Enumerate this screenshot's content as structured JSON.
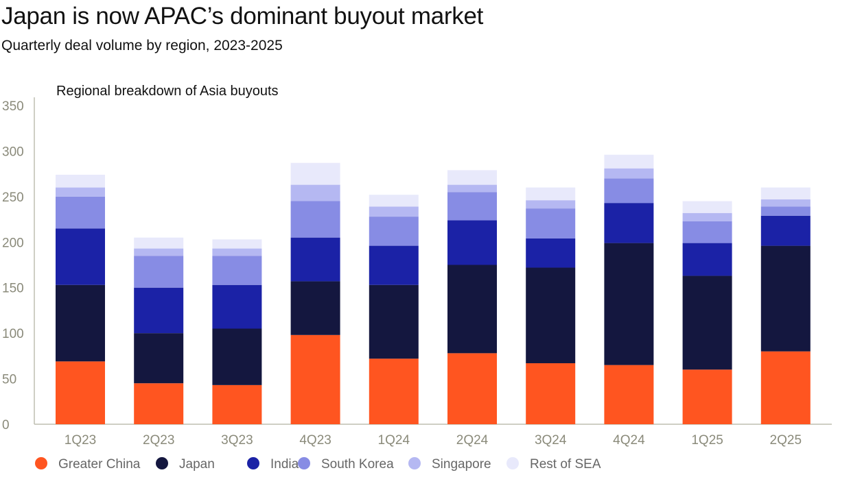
{
  "chart_data": {
    "type": "bar",
    "stacked": true,
    "title": "Japan is now APAC’s dominant buyout market",
    "subtitle": "Quarterly deal volume by region, 2023-2025",
    "inner_title": "Regional breakdown of Asia buyouts",
    "xlabel": "",
    "ylabel": "",
    "ylim": [
      0,
      350
    ],
    "yticks": [
      0,
      50,
      100,
      150,
      200,
      250,
      300,
      350
    ],
    "grid": false,
    "legend_position": "bottom",
    "categories": [
      "1Q23",
      "2Q23",
      "3Q23",
      "4Q23",
      "1Q24",
      "2Q24",
      "3Q24",
      "4Q24",
      "1Q25",
      "2Q25"
    ],
    "series": [
      {
        "name": "Greater China",
        "color": "#FF5520",
        "values": [
          69,
          45,
          43,
          98,
          72,
          78,
          67,
          65,
          60,
          80
        ]
      },
      {
        "name": "Japan",
        "color": "#14173F",
        "values": [
          84,
          55,
          62,
          59,
          81,
          97,
          105,
          134,
          103,
          116
        ]
      },
      {
        "name": "India",
        "color": "#1B22A6",
        "values": [
          62,
          50,
          48,
          48,
          43,
          49,
          32,
          44,
          36,
          33
        ]
      },
      {
        "name": "South Korea",
        "color": "#878CE4",
        "values": [
          35,
          35,
          32,
          40,
          32,
          31,
          33,
          27,
          24,
          10
        ]
      },
      {
        "name": "Singapore",
        "color": "#B5B8F2",
        "values": [
          10,
          8,
          8,
          18,
          11,
          8,
          9,
          11,
          9,
          8
        ]
      },
      {
        "name": "Rest of SEA",
        "color": "#E8E9FB",
        "values": [
          14,
          12,
          10,
          24,
          13,
          16,
          14,
          15,
          13,
          13
        ]
      }
    ]
  }
}
